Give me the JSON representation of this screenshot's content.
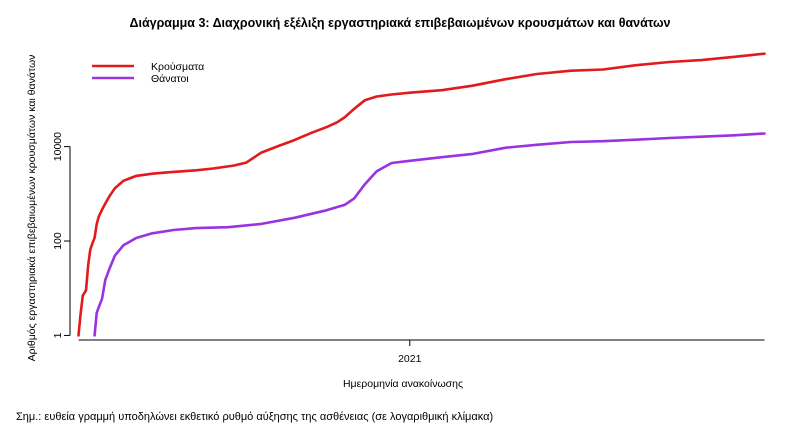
{
  "chart_data": {
    "type": "line",
    "title": "Διάγραμμα 3: Διαχρονική εξέλιξη εργαστηριακά επιβεβαιωμένων κρουσμάτων και θανάτων",
    "xlabel": "Ημερομηνία ανακοίνωσης",
    "ylabel": "Αριθμός εργαστηριακά επιβεβαιωμένων κρουσμάτων και θανάτων",
    "y_scale": "log",
    "y_ticks": [
      {
        "value": 1,
        "label": "1"
      },
      {
        "value": 100,
        "label": "100"
      },
      {
        "value": 10000,
        "label": "10000"
      }
    ],
    "x_ticks": [
      {
        "value": "2021-01-01",
        "label": "2021"
      }
    ],
    "xlim": [
      "2020-02-18",
      "2021-12-06"
    ],
    "ylim": [
      0.8,
      2000000
    ],
    "grid": false,
    "legend_position": "top-left",
    "series": [
      {
        "name": "Κρούσματα",
        "color": "#e31a1c",
        "points": [
          [
            "2020-02-26",
            1
          ],
          [
            "2020-02-28",
            3
          ],
          [
            "2020-03-01",
            7
          ],
          [
            "2020-03-04",
            9
          ],
          [
            "2020-03-06",
            31
          ],
          [
            "2020-03-08",
            66
          ],
          [
            "2020-03-10",
            89
          ],
          [
            "2020-03-12",
            117
          ],
          [
            "2020-03-14",
            228
          ],
          [
            "2020-03-16",
            331
          ],
          [
            "2020-03-19",
            464
          ],
          [
            "2020-03-22",
            624
          ],
          [
            "2020-03-26",
            892
          ],
          [
            "2020-03-31",
            1314
          ],
          [
            "2020-04-08",
            1884
          ],
          [
            "2020-04-20",
            2401
          ],
          [
            "2020-05-05",
            2663
          ],
          [
            "2020-05-20",
            2853
          ],
          [
            "2020-06-15",
            3148
          ],
          [
            "2020-07-01",
            3432
          ],
          [
            "2020-07-20",
            3964
          ],
          [
            "2020-08-01",
            4587
          ],
          [
            "2020-08-15",
            7472
          ],
          [
            "2020-08-31",
            10317
          ],
          [
            "2020-09-15",
            13730
          ],
          [
            "2020-10-01",
            19613
          ],
          [
            "2020-10-15",
            25802
          ],
          [
            "2020-10-25",
            32752
          ],
          [
            "2020-11-01",
            41527
          ],
          [
            "2020-11-10",
            63321
          ],
          [
            "2020-11-20",
            96000
          ],
          [
            "2020-12-01",
            115000
          ],
          [
            "2020-12-15",
            127000
          ],
          [
            "2021-01-01",
            139000
          ],
          [
            "2021-01-31",
            157000
          ],
          [
            "2021-02-28",
            194000
          ],
          [
            "2021-03-31",
            267000
          ],
          [
            "2021-04-30",
            346000
          ],
          [
            "2021-06-01",
            405000
          ],
          [
            "2021-07-01",
            430000
          ],
          [
            "2021-08-01",
            530000
          ],
          [
            "2021-09-01",
            620000
          ],
          [
            "2021-10-01",
            680000
          ],
          [
            "2021-11-01",
            800000
          ],
          [
            "2021-11-29",
            930000
          ]
        ]
      },
      {
        "name": "Θάνατοι",
        "color": "#9933e0",
        "points": [
          [
            "2020-03-12",
            1
          ],
          [
            "2020-03-14",
            3
          ],
          [
            "2020-03-16",
            4
          ],
          [
            "2020-03-19",
            6
          ],
          [
            "2020-03-22",
            15
          ],
          [
            "2020-03-26",
            26
          ],
          [
            "2020-03-31",
            49
          ],
          [
            "2020-04-08",
            81
          ],
          [
            "2020-04-20",
            116
          ],
          [
            "2020-05-05",
            146
          ],
          [
            "2020-05-25",
            171
          ],
          [
            "2020-06-15",
            188
          ],
          [
            "2020-07-15",
            196
          ],
          [
            "2020-08-15",
            230
          ],
          [
            "2020-09-15",
            310
          ],
          [
            "2020-10-15",
            448
          ],
          [
            "2020-11-01",
            581
          ],
          [
            "2020-11-10",
            800
          ],
          [
            "2020-11-20",
            1600
          ],
          [
            "2020-12-01",
            3000
          ],
          [
            "2020-12-15",
            4500
          ],
          [
            "2021-01-01",
            5000
          ],
          [
            "2021-02-01",
            6000
          ],
          [
            "2021-03-01",
            7000
          ],
          [
            "2021-04-01",
            9500
          ],
          [
            "2021-05-01",
            11000
          ],
          [
            "2021-06-01",
            12500
          ],
          [
            "2021-07-01",
            13000
          ],
          [
            "2021-08-01",
            14000
          ],
          [
            "2021-09-01",
            15200
          ],
          [
            "2021-10-01",
            16200
          ],
          [
            "2021-11-01",
            17400
          ],
          [
            "2021-11-29",
            19000
          ]
        ]
      }
    ]
  },
  "footnote": "Σημ.: ευθεία γραμμή υποδηλώνει εκθετικό ρυθμό αύξησης της ασθένειας (σε λογαριθμική κλίμακα)"
}
